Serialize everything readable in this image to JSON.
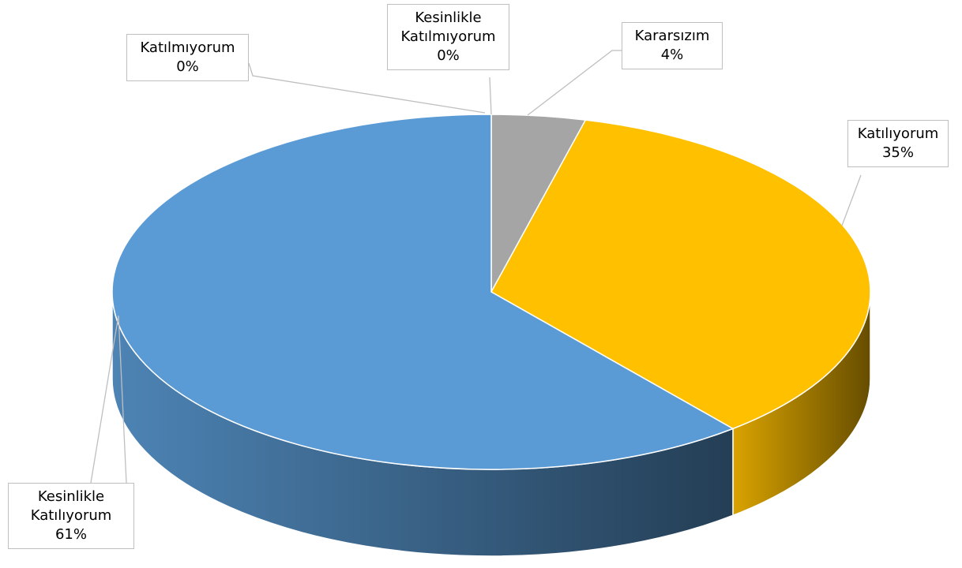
{
  "chart_data": {
    "type": "pie",
    "categories": [
      "Kesinlikle Katılmıyorum",
      "Katılmıyorum",
      "Kararsızım",
      "Katılıyorum",
      "Kesinlikle Katılıyorum"
    ],
    "values": [
      0,
      0,
      4,
      35,
      61
    ],
    "value_labels": [
      "0%",
      "0%",
      "4%",
      "35%",
      "61%"
    ],
    "colors": [
      "#4472c4",
      "#ed7d31",
      "#a5a5a5",
      "#ffc000",
      "#5b9bd5"
    ]
  }
}
